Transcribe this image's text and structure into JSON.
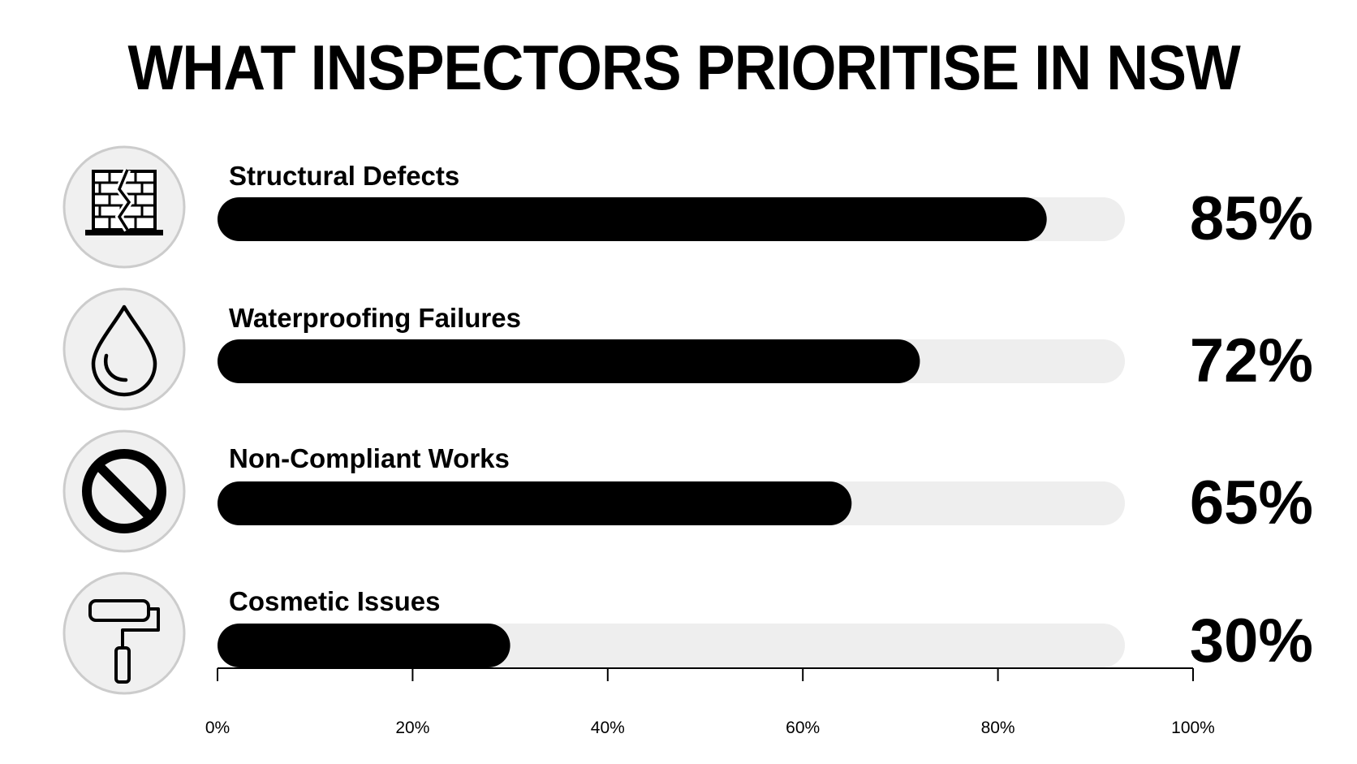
{
  "chart_data": {
    "type": "bar",
    "orientation": "horizontal",
    "title": "WHAT INSPECTORS PRIORITISE IN NSW",
    "categories": [
      "Structural Defects",
      "Waterproofing Failures",
      "Non-Compliant Works",
      "Cosmetic Issues"
    ],
    "values": [
      85,
      72,
      65,
      30
    ],
    "value_labels": [
      "85%",
      "72%",
      "65%",
      "30%"
    ],
    "icons": [
      "cracked-brick-wall-icon",
      "water-drop-icon",
      "prohibited-icon",
      "paint-roller-icon"
    ],
    "xlim": [
      0,
      100
    ],
    "xticks": [
      "0%",
      "20%",
      "40%",
      "60%",
      "80%",
      "100%"
    ],
    "grid": false,
    "legend": "none",
    "colors": {
      "bar_fill": "#000000",
      "bar_track": "#eeeeee",
      "icon_circle_fill": "#f0f0f0",
      "icon_circle_stroke": "#cccccc"
    }
  }
}
